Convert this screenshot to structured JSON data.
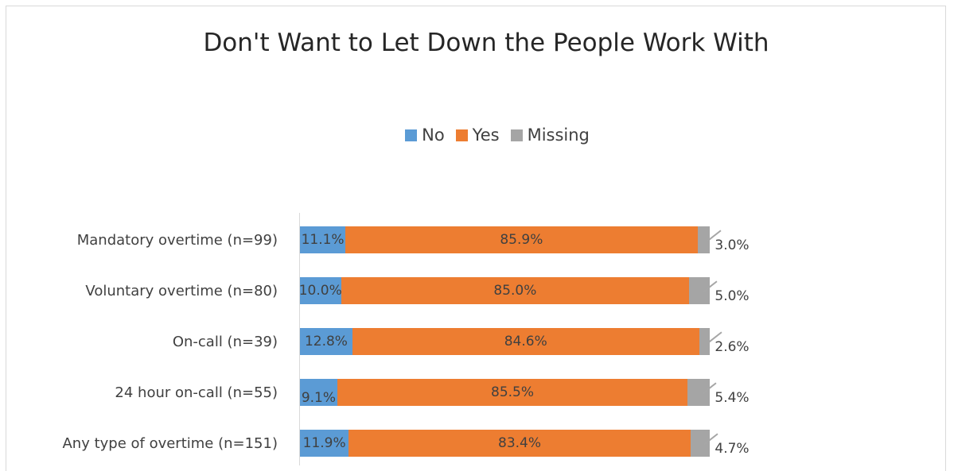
{
  "chart_data": {
    "type": "bar",
    "orientation": "horizontal",
    "stacked": true,
    "title": "Don't Want to Let Down the People Work With",
    "legend_position": "top",
    "xlim": [
      0,
      100
    ],
    "categories": [
      "Mandatory overtime (n=99)",
      "Voluntary overtime (n=80)",
      "On-call (n=39)",
      "24 hour on-call (n=55)",
      "Any type of overtime (n=151)"
    ],
    "series": [
      {
        "name": "No",
        "color": "#5b9bd5",
        "values": [
          11.1,
          10.0,
          12.8,
          9.1,
          11.9
        ],
        "labels": [
          "11.1%",
          "10.0%",
          "12.8%",
          "9.1%",
          "11.9%"
        ]
      },
      {
        "name": "Yes",
        "color": "#ed7d31",
        "values": [
          85.9,
          85.0,
          84.6,
          85.5,
          83.4
        ],
        "labels": [
          "85.9%",
          "85.0%",
          "84.6%",
          "85.5%",
          "83.4%"
        ]
      },
      {
        "name": "Missing",
        "color": "#a5a5a5",
        "values": [
          3.0,
          5.0,
          2.6,
          5.4,
          4.7
        ],
        "labels": [
          "3.0%",
          "5.0%",
          "2.6%",
          "5.4%",
          "4.7%"
        ]
      }
    ]
  }
}
